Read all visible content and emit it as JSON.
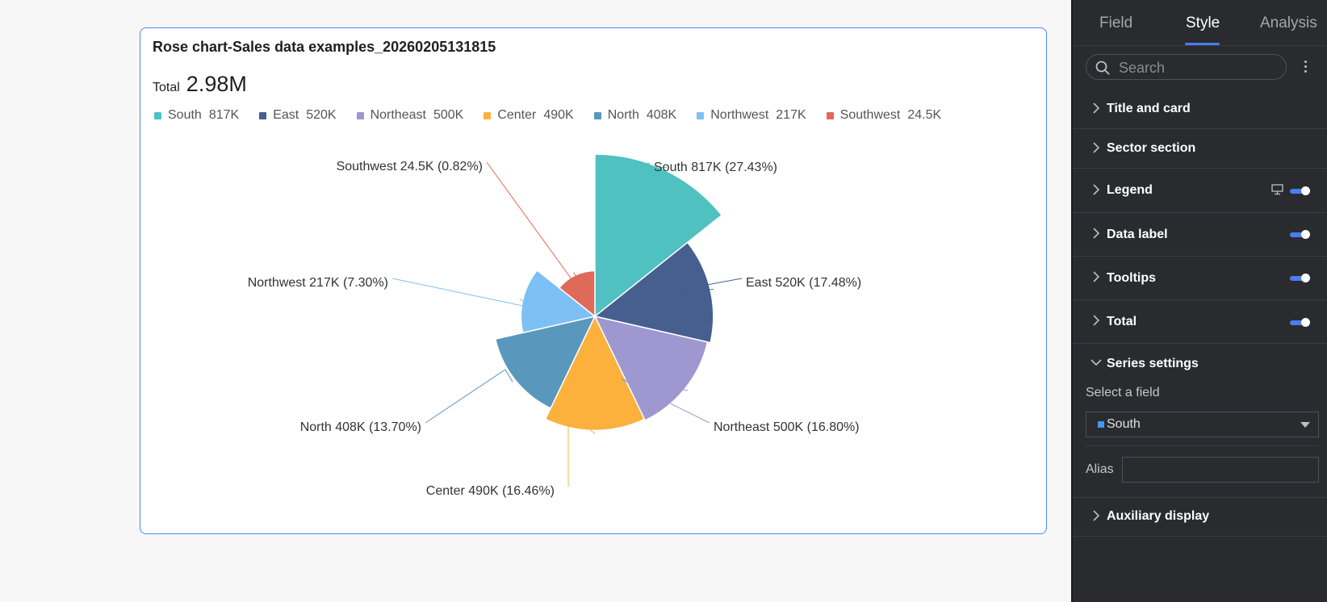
{
  "chart_card": {
    "title": "Rose chart-Sales data examples_20260205131815",
    "total_label": "Total",
    "total_value": "2.98M"
  },
  "chart_data": {
    "type": "pie",
    "variant": "rose",
    "title": "Rose chart-Sales data examples_20260205131815",
    "total": "2.98M",
    "categories": [
      "South",
      "East",
      "Northeast",
      "Center",
      "North",
      "Northwest",
      "Southwest"
    ],
    "values": [
      817000,
      520000,
      500000,
      490000,
      408000,
      217000,
      24500
    ],
    "value_labels": [
      "817K",
      "520K",
      "500K",
      "490K",
      "408K",
      "217K",
      "24.5K"
    ],
    "percents": [
      "27.43%",
      "17.48%",
      "16.80%",
      "16.46%",
      "13.70%",
      "7.30%",
      "0.82%"
    ],
    "colors": [
      "#4fc1c1",
      "#465f8f",
      "#9f97d0",
      "#fbb13c",
      "#5a97bc",
      "#7cc0f5",
      "#e06a5a"
    ],
    "legend_position": "top-left",
    "data_labels": [
      "South 817K (27.43%)",
      "East 520K (17.48%)",
      "Northeast 500K (16.80%)",
      "Center 490K (16.46%)",
      "North 408K (13.70%)",
      "Northwest 217K (7.30%)",
      "Southwest 24.5K (0.82%)"
    ]
  },
  "legend": [
    {
      "name": "South",
      "value": "817K",
      "color": "#4fc1c1"
    },
    {
      "name": "East",
      "value": "520K",
      "color": "#465f8f"
    },
    {
      "name": "Northeast",
      "value": "500K",
      "color": "#9f97d0"
    },
    {
      "name": "Center",
      "value": "490K",
      "color": "#fbb13c"
    },
    {
      "name": "North",
      "value": "408K",
      "color": "#5a97bc"
    },
    {
      "name": "Northwest",
      "value": "217K",
      "color": "#7cc0f5"
    },
    {
      "name": "Southwest",
      "value": "24.5K",
      "color": "#e06a5a"
    }
  ],
  "panel": {
    "tabs": [
      "Field",
      "Style",
      "Analysis"
    ],
    "active_tab": "Style",
    "search_placeholder": "Search",
    "sections": {
      "title_and_card": "Title and card",
      "sector_section": "Sector section",
      "legend": "Legend",
      "data_label": "Data label",
      "tooltips": "Tooltips",
      "total": "Total",
      "series_settings": "Series settings",
      "auxiliary_display": "Auxiliary display"
    },
    "toggles": {
      "legend": true,
      "data_label": true,
      "tooltips": true,
      "total": true
    },
    "select_field_label": "Select a field",
    "selected_field": "South",
    "alias_label": "Alias",
    "alias_value": "",
    "accent_color": "#4c7cf0"
  }
}
